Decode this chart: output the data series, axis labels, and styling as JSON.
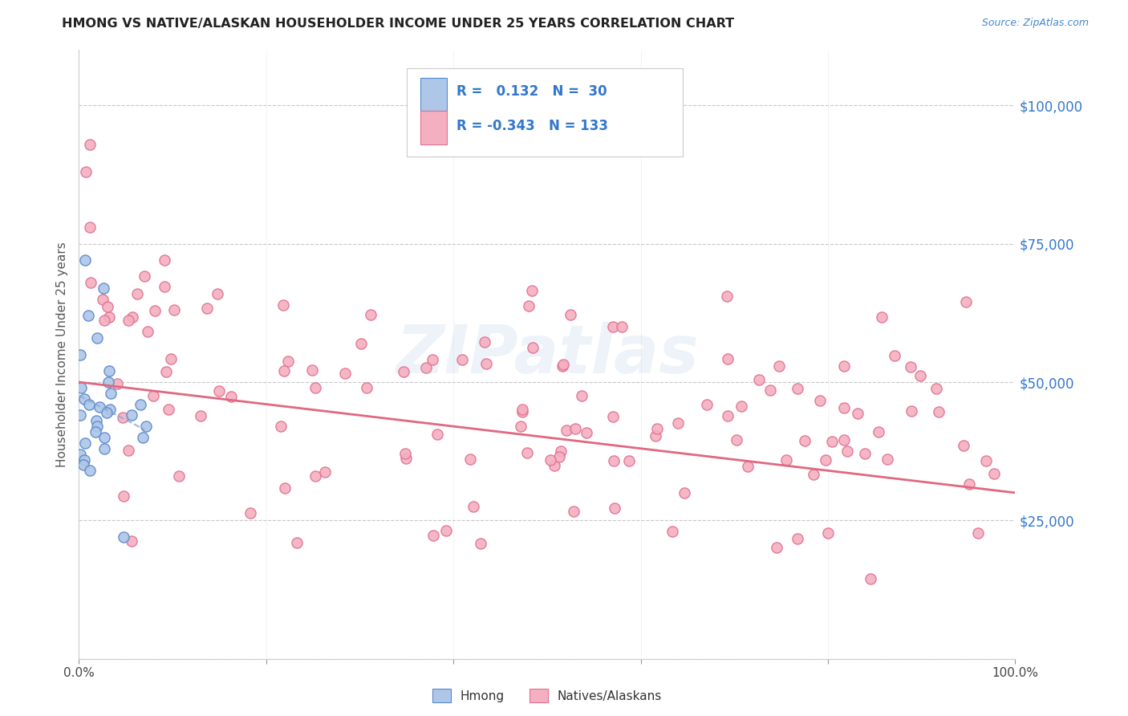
{
  "title": "HMONG VS NATIVE/ALASKAN HOUSEHOLDER INCOME UNDER 25 YEARS CORRELATION CHART",
  "source": "Source: ZipAtlas.com",
  "ylabel": "Householder Income Under 25 years",
  "ytick_values": [
    0,
    25000,
    50000,
    75000,
    100000
  ],
  "ytick_labels_right": [
    "",
    "$25,000",
    "$50,000",
    "$75,000",
    "$100,000"
  ],
  "xlim": [
    0,
    100
  ],
  "ylim": [
    0,
    110000
  ],
  "watermark": "ZIPatlas",
  "hmong_color": "#aec6e8",
  "native_color": "#f4afc0",
  "hmong_edge": "#5588cc",
  "native_edge": "#e07090",
  "trendline_blue_color": "#88aacc",
  "trendline_pink_color": "#e06880",
  "background": "#ffffff",
  "grid_color": "#c8c8c8",
  "title_color": "#222222",
  "source_color": "#4488cc",
  "ylabel_color": "#555555",
  "ytick_color": "#3377cc",
  "legend_text_color": "#3377cc",
  "bottom_legend_text_color": "#333333",
  "hmong_seed": 12,
  "native_seed": 7
}
